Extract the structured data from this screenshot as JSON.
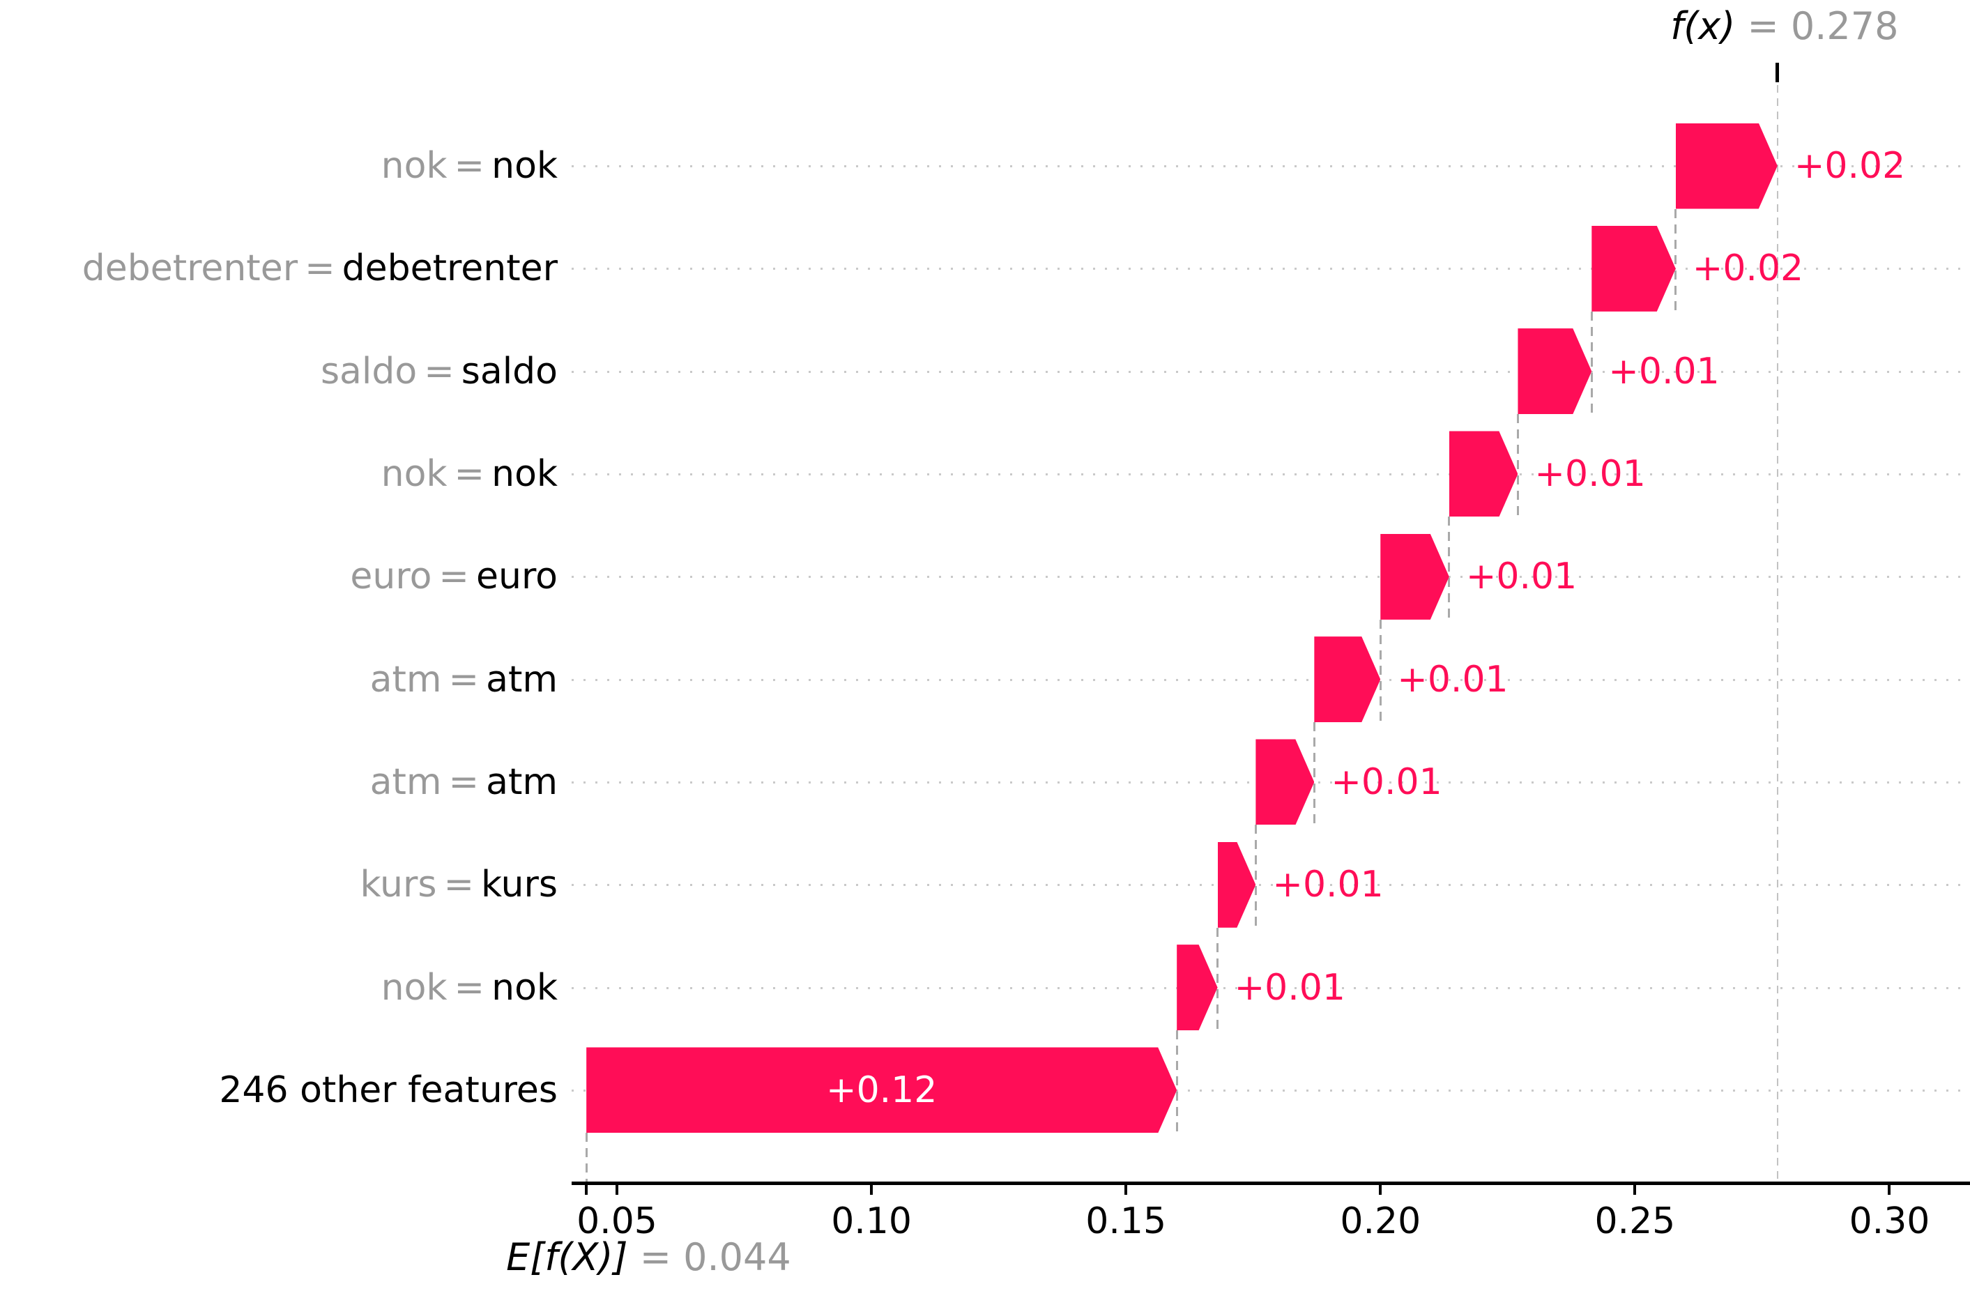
{
  "chart_data": {
    "type": "bar",
    "variant": "shap-waterfall",
    "title": "",
    "fx_annotation": {
      "symbol": "f(x)",
      "rest": " = 0.278",
      "value": 0.278
    },
    "ef_annotation": {
      "symbol": "E[f(X)]",
      "rest": " = 0.044",
      "value": 0.044
    },
    "base_value": 0.044,
    "final_value": 0.278,
    "xlim": [
      0.0411,
      0.315
    ],
    "grid": "horizontal-dotted",
    "x_ticks": [
      0.05,
      0.1,
      0.15,
      0.2,
      0.25,
      0.3
    ],
    "x_tick_labels": [
      "0.05",
      "0.10",
      "0.15",
      "0.20",
      "0.25",
      "0.30"
    ],
    "rows": [
      {
        "feature_value": "nok",
        "feature_name": "nok",
        "label": "+0.02",
        "start": 0.258,
        "end": 0.278,
        "label_inside": false
      },
      {
        "feature_value": "debetrenter",
        "feature_name": "debetrenter",
        "label": "+0.02",
        "start": 0.2415,
        "end": 0.258,
        "label_inside": false
      },
      {
        "feature_value": "saldo",
        "feature_name": "saldo",
        "label": "+0.01",
        "start": 0.227,
        "end": 0.2415,
        "label_inside": false
      },
      {
        "feature_value": "nok",
        "feature_name": "nok",
        "label": "+0.01",
        "start": 0.2135,
        "end": 0.227,
        "label_inside": false
      },
      {
        "feature_value": "euro",
        "feature_name": "euro",
        "label": "+0.01",
        "start": 0.2,
        "end": 0.2135,
        "label_inside": false
      },
      {
        "feature_value": "atm",
        "feature_name": "atm",
        "label": "+0.01",
        "start": 0.187,
        "end": 0.2,
        "label_inside": false
      },
      {
        "feature_value": "atm",
        "feature_name": "atm",
        "label": "+0.01",
        "start": 0.1755,
        "end": 0.187,
        "label_inside": false
      },
      {
        "feature_value": "kurs",
        "feature_name": "kurs",
        "label": "+0.01",
        "start": 0.168,
        "end": 0.1755,
        "label_inside": false
      },
      {
        "feature_value": "nok",
        "feature_name": "nok",
        "label": "+0.01",
        "start": 0.16,
        "end": 0.168,
        "label_inside": false
      },
      {
        "feature_value": null,
        "feature_name": "246 other features",
        "label": "+0.12",
        "start": 0.044,
        "end": 0.16,
        "label_inside": true
      }
    ],
    "colors": {
      "positive": "#ff0d57",
      "inside_label": "#ffffff",
      "gray_text": "#999999",
      "black_text": "#000000",
      "gridline": "#c9c9c9",
      "connector": "#a9a9a9",
      "refline": "#c2c2c2",
      "axis": "#000000"
    }
  }
}
